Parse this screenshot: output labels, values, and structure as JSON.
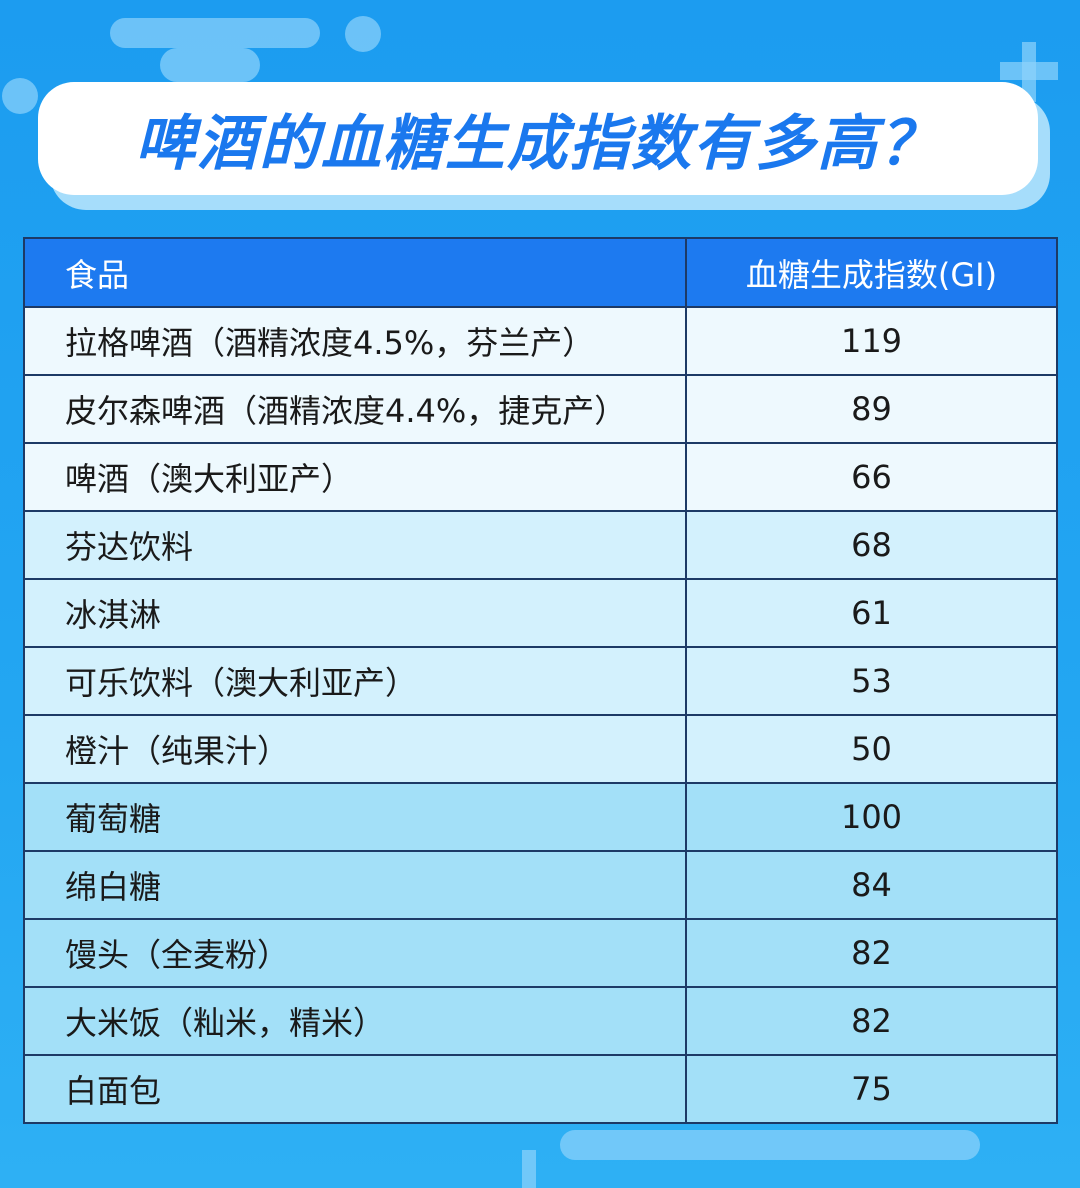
{
  "header": {
    "title": "啤酒的血糖生成指数有多高？"
  },
  "table": {
    "columns": [
      "食品",
      "血糖生成指数(GI)"
    ],
    "groups": [
      {
        "rows": [
          [
            "拉格啤酒（酒精浓度4.5%，芬兰产）",
            119
          ],
          [
            "皮尔森啤酒（酒精浓度4.4%，捷克产）",
            89
          ],
          [
            "啤酒（澳大利亚产）",
            66
          ]
        ]
      },
      {
        "rows": [
          [
            "芬达饮料",
            68
          ],
          [
            "冰淇淋",
            61
          ],
          [
            "可乐饮料（澳大利亚产）",
            53
          ],
          [
            "橙汁（纯果汁）",
            50
          ]
        ]
      },
      {
        "rows": [
          [
            "葡萄糖",
            100
          ],
          [
            "绵白糖",
            84
          ],
          [
            "馒头（全麦粉）",
            82
          ],
          [
            "大米饭（籼米，精米）",
            82
          ],
          [
            "白面包",
            75
          ]
        ]
      }
    ]
  }
}
